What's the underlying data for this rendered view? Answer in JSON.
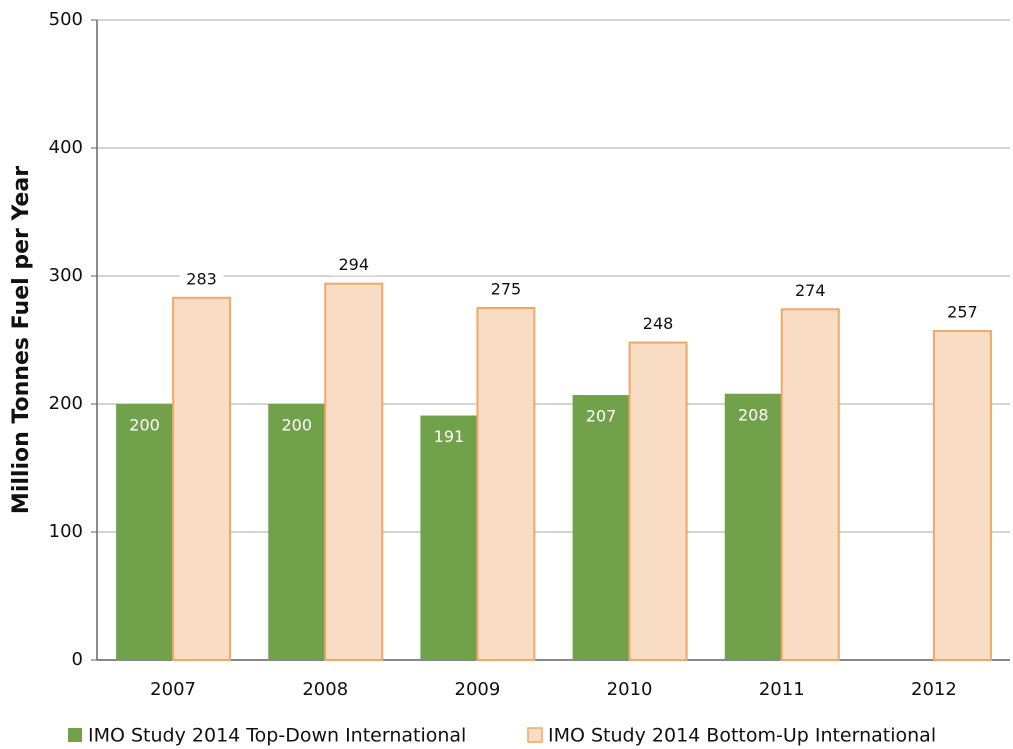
{
  "chart_data": {
    "type": "bar",
    "y_label": "Million Tonnes Fuel per Year",
    "categories": [
      "2007",
      "2008",
      "2009",
      "2010",
      "2011",
      "2012"
    ],
    "series": [
      {
        "name": "IMO Study 2014 Top-Down International",
        "color": "#72a14c",
        "values": [
          200,
          200,
          191,
          207,
          208,
          null
        ]
      },
      {
        "name": "IMO Study 2014 Bottom-Up International",
        "color": "#f8dcc4",
        "edge": "#f0a868",
        "values": [
          283,
          294,
          275,
          248,
          274,
          257
        ]
      }
    ],
    "ylim": [
      0,
      500
    ],
    "yticks": [
      0,
      100,
      200,
      300,
      400,
      500
    ],
    "grid": true
  }
}
